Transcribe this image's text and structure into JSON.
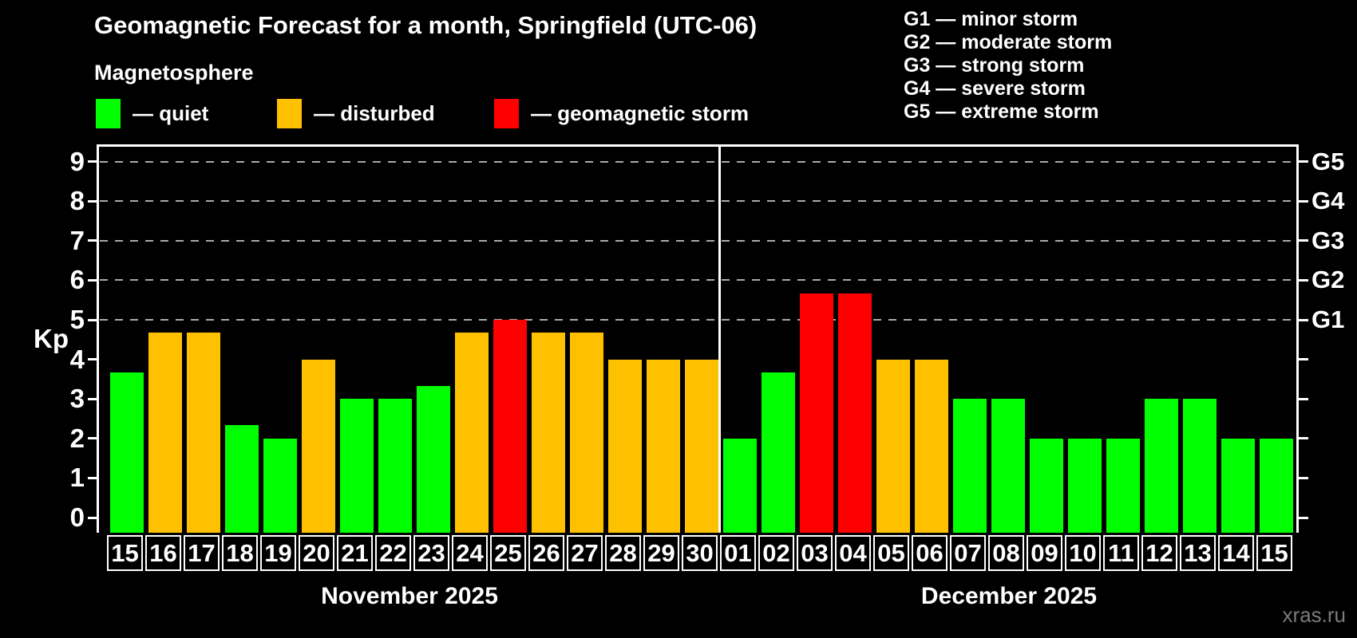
{
  "header": {
    "title": "Geomagnetic Forecast for a month, Springfield (UTC-06)",
    "subtitle": "Magnetosphere"
  },
  "legend": {
    "items": [
      {
        "key": "quiet",
        "label": "— quiet",
        "color": "#00ff00"
      },
      {
        "key": "disturbed",
        "label": "— disturbed",
        "color": "#ffc000"
      },
      {
        "key": "storm",
        "label": "— geomagnetic storm",
        "color": "#ff0000"
      }
    ]
  },
  "g_legend": {
    "items": [
      "G1 — minor storm",
      "G2 — moderate storm",
      "G3 — strong storm",
      "G4 — severe storm",
      "G5 — extreme storm"
    ]
  },
  "axes": {
    "y_label": "Kp",
    "kp_ticks": [
      0,
      1,
      2,
      3,
      4,
      5,
      6,
      7,
      8,
      9
    ],
    "g_ticks": [
      {
        "label": "G1",
        "kp": 5
      },
      {
        "label": "G2",
        "kp": 6
      },
      {
        "label": "G3",
        "kp": 7
      },
      {
        "label": "G4",
        "kp": 8
      },
      {
        "label": "G5",
        "kp": 9
      }
    ]
  },
  "months": [
    {
      "label": "November 2025",
      "days": 16
    },
    {
      "label": "December 2025",
      "days": 15
    }
  ],
  "watermark": {
    "text": "xras.ru"
  },
  "colors": {
    "quiet": "#00ff00",
    "disturbed": "#ffc000",
    "storm": "#ff0000",
    "background": "#000000",
    "grid": "#aaaaaa",
    "axis": "#ffffff",
    "watermark": "#7b7b7b"
  },
  "chart_data": {
    "type": "bar",
    "title": "Geomagnetic Forecast for a month, Springfield (UTC-06)",
    "ylabel": "Kp",
    "ylim": [
      0,
      9
    ],
    "gridlines_at_kp": [
      5,
      6,
      7,
      8,
      9
    ],
    "legend_position": "top",
    "points": [
      {
        "month": "November 2025",
        "day": "15",
        "kp": 3.67,
        "status": "quiet"
      },
      {
        "month": "November 2025",
        "day": "16",
        "kp": 4.67,
        "status": "disturbed"
      },
      {
        "month": "November 2025",
        "day": "17",
        "kp": 4.67,
        "status": "disturbed"
      },
      {
        "month": "November 2025",
        "day": "18",
        "kp": 2.33,
        "status": "quiet"
      },
      {
        "month": "November 2025",
        "day": "19",
        "kp": 2.0,
        "status": "quiet"
      },
      {
        "month": "November 2025",
        "day": "20",
        "kp": 4.0,
        "status": "disturbed"
      },
      {
        "month": "November 2025",
        "day": "21",
        "kp": 3.0,
        "status": "quiet"
      },
      {
        "month": "November 2025",
        "day": "22",
        "kp": 3.0,
        "status": "quiet"
      },
      {
        "month": "November 2025",
        "day": "23",
        "kp": 3.33,
        "status": "quiet"
      },
      {
        "month": "November 2025",
        "day": "24",
        "kp": 4.67,
        "status": "disturbed"
      },
      {
        "month": "November 2025",
        "day": "25",
        "kp": 5.0,
        "status": "storm"
      },
      {
        "month": "November 2025",
        "day": "26",
        "kp": 4.67,
        "status": "disturbed"
      },
      {
        "month": "November 2025",
        "day": "27",
        "kp": 4.67,
        "status": "disturbed"
      },
      {
        "month": "November 2025",
        "day": "28",
        "kp": 4.0,
        "status": "disturbed"
      },
      {
        "month": "November 2025",
        "day": "29",
        "kp": 4.0,
        "status": "disturbed"
      },
      {
        "month": "November 2025",
        "day": "30",
        "kp": 4.0,
        "status": "disturbed"
      },
      {
        "month": "December 2025",
        "day": "01",
        "kp": 2.0,
        "status": "quiet"
      },
      {
        "month": "December 2025",
        "day": "02",
        "kp": 3.67,
        "status": "quiet"
      },
      {
        "month": "December 2025",
        "day": "03",
        "kp": 5.67,
        "status": "storm"
      },
      {
        "month": "December 2025",
        "day": "04",
        "kp": 5.67,
        "status": "storm"
      },
      {
        "month": "December 2025",
        "day": "05",
        "kp": 4.0,
        "status": "disturbed"
      },
      {
        "month": "December 2025",
        "day": "06",
        "kp": 4.0,
        "status": "disturbed"
      },
      {
        "month": "December 2025",
        "day": "07",
        "kp": 3.0,
        "status": "quiet"
      },
      {
        "month": "December 2025",
        "day": "08",
        "kp": 3.0,
        "status": "quiet"
      },
      {
        "month": "December 2025",
        "day": "09",
        "kp": 2.0,
        "status": "quiet"
      },
      {
        "month": "December 2025",
        "day": "10",
        "kp": 2.0,
        "status": "quiet"
      },
      {
        "month": "December 2025",
        "day": "11",
        "kp": 2.0,
        "status": "quiet"
      },
      {
        "month": "December 2025",
        "day": "12",
        "kp": 3.0,
        "status": "quiet"
      },
      {
        "month": "December 2025",
        "day": "13",
        "kp": 3.0,
        "status": "quiet"
      },
      {
        "month": "December 2025",
        "day": "14",
        "kp": 2.0,
        "status": "quiet"
      },
      {
        "month": "December 2025",
        "day": "15",
        "kp": 2.0,
        "status": "quiet"
      }
    ]
  }
}
